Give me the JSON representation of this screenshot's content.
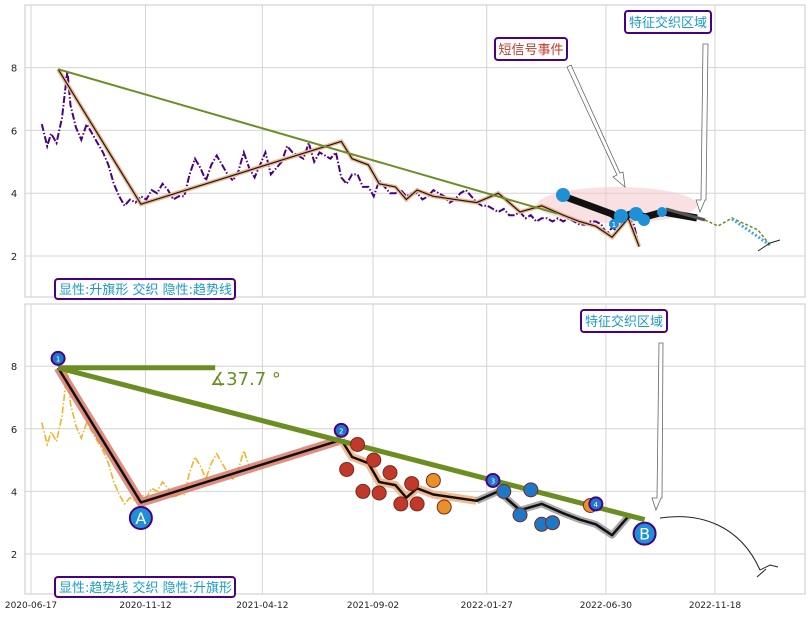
{
  "chart_data": [
    {
      "type": "line",
      "panel": "top",
      "ylim": [
        0.8,
        10.0
      ],
      "yticks": [
        "2",
        "4",
        "6",
        "8"
      ],
      "grid": true,
      "series": [
        {
          "kind": "price",
          "style": "dash-dot",
          "color": "#4b0082",
          "x": [
            "2020-07-01",
            "2020-07-08",
            "2020-07-13",
            "2020-07-20",
            "2020-07-27",
            "2020-08-03",
            "2020-08-07",
            "2020-08-14",
            "2020-08-21",
            "2020-08-28",
            "2020-09-04",
            "2020-09-11",
            "2020-09-18",
            "2020-09-25",
            "2020-10-02",
            "2020-10-09",
            "2020-10-16",
            "2020-10-23",
            "2020-10-30",
            "2020-11-06",
            "2020-11-13",
            "2020-11-20",
            "2020-11-27",
            "2020-12-04",
            "2020-12-11",
            "2020-12-18",
            "2020-12-25",
            "2021-01-01",
            "2021-01-08",
            "2021-01-15",
            "2021-01-22",
            "2021-01-29",
            "2021-02-05",
            "2021-02-12",
            "2021-02-19",
            "2021-02-26",
            "2021-03-05",
            "2021-03-12",
            "2021-03-19",
            "2021-03-26",
            "2021-04-02",
            "2021-04-09",
            "2021-04-16",
            "2021-04-23",
            "2021-04-30",
            "2021-05-07",
            "2021-05-14",
            "2021-05-21",
            "2021-05-28",
            "2021-06-04",
            "2021-06-11",
            "2021-06-18",
            "2021-06-25",
            "2021-07-02",
            "2021-07-09",
            "2021-07-16",
            "2021-07-23",
            "2021-07-30",
            "2021-08-06",
            "2021-08-13",
            "2021-08-20",
            "2021-08-27",
            "2021-09-03",
            "2021-09-10",
            "2021-09-17",
            "2021-09-24",
            "2021-10-01",
            "2021-10-08",
            "2021-10-15",
            "2021-10-22",
            "2021-10-29",
            "2021-11-05",
            "2021-11-12",
            "2021-11-19",
            "2021-11-26",
            "2021-12-03",
            "2021-12-10",
            "2021-12-17",
            "2021-12-24",
            "2021-12-31",
            "2022-01-07",
            "2022-01-14",
            "2022-01-21",
            "2022-01-28",
            "2022-02-04",
            "2022-02-11",
            "2022-02-18",
            "2022-02-25",
            "2022-03-04",
            "2022-03-11",
            "2022-03-18",
            "2022-03-25",
            "2022-04-01",
            "2022-04-08",
            "2022-04-15",
            "2022-04-22",
            "2022-04-29",
            "2022-05-06",
            "2022-05-13",
            "2022-05-20",
            "2022-05-27",
            "2022-06-03",
            "2022-06-10",
            "2022-06-17",
            "2022-06-24",
            "2022-07-01",
            "2022-07-08",
            "2022-07-15",
            "2022-07-22",
            "2022-07-29",
            "2022-08-05",
            "2022-08-12"
          ],
          "y": [
            6.2,
            5.5,
            5.9,
            5.6,
            6.4,
            7.9,
            6.8,
            6.1,
            5.7,
            6.2,
            5.9,
            5.6,
            5.3,
            4.9,
            4.3,
            3.9,
            3.6,
            3.8,
            3.7,
            3.9,
            3.8,
            4.1,
            4.0,
            4.3,
            4.1,
            3.8,
            3.9,
            3.9,
            4.6,
            5.1,
            4.8,
            4.4,
            4.9,
            5.2,
            4.9,
            4.6,
            4.4,
            4.7,
            5.3,
            4.8,
            4.5,
            4.9,
            5.3,
            4.6,
            4.8,
            5.0,
            5.5,
            5.3,
            5.2,
            5.1,
            5.6,
            5.0,
            5.3,
            5.2,
            5.1,
            5.3,
            4.5,
            4.3,
            4.6,
            4.6,
            4.2,
            4.2,
            3.9,
            4.4,
            4.2,
            4.0,
            4.0,
            4.1,
            3.9,
            4.0,
            4.0,
            3.8,
            3.9,
            4.1,
            4.0,
            3.9,
            3.7,
            3.8,
            4.0,
            4.1,
            3.9,
            3.7,
            3.6,
            3.6,
            3.5,
            3.4,
            3.5,
            3.3,
            3.3,
            3.4,
            3.2,
            3.3,
            3.1,
            3.2,
            3.2,
            3.1,
            3.2,
            3.1,
            3.2,
            3.1,
            3.0,
            3.0,
            3.1,
            3.1,
            3.0,
            2.7,
            2.9,
            2.8,
            3.1,
            3.2,
            3.0,
            2.3
          ]
        },
        {
          "kind": "zigzag",
          "x": [
            "2020-07-22",
            "2020-11-06",
            "2021-07-23",
            "2021-08-06",
            "2021-08-27",
            "2021-09-10",
            "2021-10-01",
            "2021-10-15",
            "2021-10-29",
            "2021-11-19",
            "2022-01-14",
            "2022-02-11",
            "2022-03-11",
            "2022-04-08",
            "2022-05-06",
            "2022-05-27",
            "2022-06-17",
            "2022-07-08",
            "2022-07-29",
            "2022-08-12"
          ],
          "y": [
            7.95,
            3.65,
            5.65,
            5.1,
            4.9,
            4.3,
            4.2,
            3.8,
            4.1,
            3.9,
            3.7,
            4.0,
            3.4,
            3.6,
            3.3,
            3.1,
            2.95,
            2.6,
            3.2,
            2.3
          ]
        },
        {
          "kind": "trendline",
          "color": "#6b8e23",
          "x": [
            "2020-07-22",
            "2022-04-28"
          ],
          "y": [
            7.95,
            3.35
          ]
        }
      ],
      "annotations": [
        {
          "text": "短信号事件",
          "color": "#c0392b"
        },
        {
          "text": "特征交织区域",
          "color": "#1a9bc7"
        },
        {
          "text": "显性:升旗形 交织 隐性:趋势线",
          "color": "#1a9bc7"
        }
      ],
      "markers": [
        {
          "label": "1",
          "x": "2022-03-31",
          "y": 2.85
        }
      ]
    },
    {
      "type": "line",
      "panel": "bottom",
      "ylim": [
        0.8,
        10.0
      ],
      "yticks": [
        "2",
        "4",
        "6",
        "8"
      ],
      "xticks": [
        "2020-06-17",
        "2020-11-12",
        "2021-04-12",
        "2021-09-02",
        "2022-01-27",
        "2022-06-30",
        "2022-11-18"
      ],
      "grid": true,
      "series": [
        {
          "kind": "price",
          "style": "dash-dot",
          "color": "#f0b429"
        },
        {
          "kind": "zigzag"
        },
        {
          "kind": "trendline",
          "color": "#6b8e23",
          "x": [
            "2020-07-22",
            "2022-08-19"
          ],
          "y": [
            7.95,
            3.1
          ]
        },
        {
          "kind": "horizontal",
          "color": "#6b8e23",
          "x": [
            "2020-07-22",
            "2021-02-10"
          ],
          "y": [
            7.95,
            7.95
          ]
        }
      ],
      "points": [
        {
          "label": "A",
          "x": "2020-11-06",
          "y": 3.15
        },
        {
          "label": "B",
          "x": "2022-08-19",
          "y": 2.65
        }
      ],
      "angle_label": "∡37.7 °",
      "numbered_markers": [
        {
          "label": "1",
          "x": "2020-07-22",
          "y": 8.25
        },
        {
          "label": "2",
          "x": "2021-07-23",
          "y": 5.95
        },
        {
          "label": "3",
          "x": "2022-02-04",
          "y": 4.35
        },
        {
          "label": "4",
          "x": "2022-06-17",
          "y": 3.6
        }
      ],
      "annotations": [
        {
          "text": "特征交织区域",
          "color": "#1a9bc7"
        },
        {
          "text": "显性:趋势线 交织 隐性:升旗形",
          "color": "#1a9bc7"
        }
      ]
    }
  ]
}
